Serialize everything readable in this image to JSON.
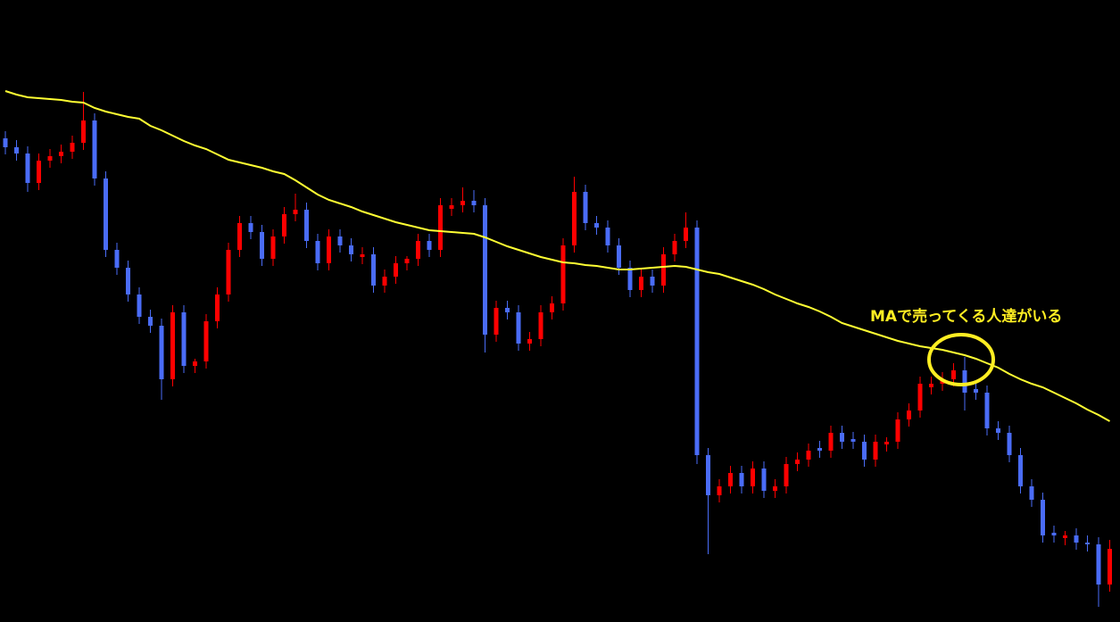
{
  "chart_data": {
    "type": "candlestick",
    "up_color": "#ff0000",
    "down_color": "#4a6cf7",
    "ylim": [
      3,
      700
    ],
    "open": [
      545,
      535,
      528,
      495,
      520,
      525,
      530,
      540,
      565,
      500,
      420,
      400,
      370,
      345,
      335,
      275,
      350,
      290,
      295,
      340,
      370,
      420,
      450,
      440,
      410,
      435,
      460,
      465,
      430,
      405,
      435,
      425,
      412,
      415,
      380,
      390,
      405,
      410,
      430,
      420,
      466,
      470,
      475,
      470,
      325,
      355,
      350,
      315,
      320,
      350,
      360,
      425,
      485,
      450,
      445,
      425,
      400,
      375,
      390,
      380,
      415,
      430,
      445,
      190,
      145,
      155,
      170,
      155,
      175,
      150,
      155,
      180,
      185,
      198,
      195,
      215,
      208,
      205,
      185,
      202,
      205,
      230,
      240,
      266,
      270,
      275,
      285,
      264,
      260,
      220,
      215,
      190,
      155,
      140,
      103,
      97,
      100,
      92,
      90,
      45
    ],
    "high": [
      553,
      543,
      536,
      528,
      533,
      538,
      548,
      597,
      573,
      508,
      428,
      408,
      378,
      353,
      343,
      358,
      358,
      298,
      348,
      378,
      428,
      458,
      458,
      448,
      443,
      468,
      483,
      473,
      438,
      443,
      443,
      433,
      423,
      423,
      398,
      413,
      413,
      438,
      438,
      478,
      478,
      490,
      487,
      478,
      363,
      363,
      358,
      328,
      358,
      368,
      433,
      502,
      493,
      458,
      453,
      433,
      408,
      398,
      398,
      423,
      438,
      462,
      453,
      198,
      163,
      178,
      178,
      183,
      183,
      163,
      188,
      193,
      203,
      206,
      223,
      223,
      216,
      213,
      213,
      210,
      238,
      248,
      278,
      278,
      283,
      293,
      300,
      272,
      268,
      228,
      223,
      198,
      163,
      148,
      111,
      105,
      108,
      100,
      98,
      95
    ],
    "low": [
      527,
      520,
      485,
      487,
      512,
      517,
      522,
      532,
      492,
      412,
      392,
      362,
      337,
      327,
      252,
      267,
      282,
      282,
      287,
      332,
      362,
      412,
      432,
      402,
      402,
      427,
      452,
      422,
      397,
      397,
      417,
      407,
      404,
      372,
      372,
      382,
      397,
      402,
      412,
      412,
      458,
      462,
      462,
      305,
      317,
      342,
      307,
      307,
      312,
      342,
      352,
      417,
      442,
      437,
      417,
      392,
      367,
      367,
      372,
      372,
      407,
      422,
      180,
      79,
      137,
      147,
      147,
      147,
      142,
      142,
      147,
      172,
      177,
      187,
      187,
      197,
      197,
      177,
      177,
      194,
      197,
      222,
      232,
      258,
      262,
      267,
      240,
      252,
      212,
      207,
      182,
      147,
      132,
      92,
      92,
      89,
      84,
      82,
      20,
      37
    ],
    "close": [
      535,
      528,
      495,
      520,
      525,
      530,
      540,
      565,
      500,
      420,
      400,
      370,
      345,
      335,
      275,
      350,
      290,
      295,
      340,
      370,
      420,
      450,
      440,
      410,
      435,
      460,
      465,
      430,
      405,
      435,
      425,
      415,
      415,
      380,
      390,
      405,
      410,
      430,
      420,
      470,
      470,
      475,
      470,
      325,
      355,
      350,
      315,
      320,
      350,
      360,
      425,
      485,
      450,
      445,
      425,
      400,
      375,
      390,
      380,
      415,
      430,
      445,
      190,
      145,
      155,
      170,
      155,
      175,
      150,
      155,
      180,
      185,
      195,
      195,
      215,
      205,
      205,
      185,
      205,
      205,
      230,
      240,
      270,
      270,
      275,
      285,
      260,
      260,
      220,
      215,
      190,
      155,
      140,
      100,
      100,
      100,
      92,
      90,
      45,
      85
    ],
    "ma": {
      "color": "#ffff33",
      "values": [
        598,
        594,
        591,
        590,
        589,
        588,
        586,
        585,
        579,
        575,
        572,
        569,
        567,
        559,
        554,
        548,
        542,
        537,
        533,
        527,
        521,
        518,
        515,
        512,
        508,
        505,
        498,
        490,
        482,
        476,
        472,
        468,
        463,
        459,
        455,
        451,
        448,
        445,
        442,
        441,
        440,
        439,
        438,
        434,
        429,
        424,
        420,
        416,
        412,
        409,
        406,
        405,
        403,
        402,
        400,
        398,
        398,
        399,
        400,
        401,
        402,
        401,
        398,
        395,
        393,
        389,
        385,
        381,
        376,
        370,
        365,
        360,
        356,
        351,
        345,
        338,
        334,
        330,
        326,
        322,
        318,
        315,
        312,
        310,
        308,
        305,
        302,
        298,
        293,
        288,
        281,
        275,
        270,
        266,
        260,
        254,
        248,
        241,
        235,
        228
      ]
    },
    "annotation": "MAで売ってくる人達がいる"
  }
}
